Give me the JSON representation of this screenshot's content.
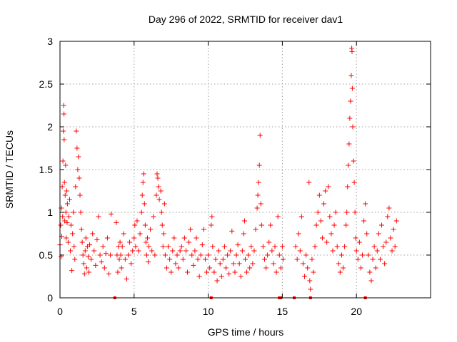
{
  "chart_data": {
    "type": "scatter",
    "title": "Day 296 of 2022, SRMTID for receiver dav1",
    "xlabel": "GPS time / hours",
    "ylabel": "SRMTID / TECUs",
    "xlim": [
      0,
      25
    ],
    "ylim": [
      0,
      3
    ],
    "xticks": [
      0,
      5,
      10,
      15,
      20
    ],
    "xtick_labels": [
      "0",
      "5",
      "10",
      "15",
      "20"
    ],
    "yticks": [
      0,
      0.5,
      1,
      1.5,
      2,
      2.5,
      3
    ],
    "ytick_labels": [
      "0",
      "0.5",
      "1",
      "1.5",
      "2",
      "2.5",
      "3"
    ],
    "grid": true,
    "marker": "+",
    "color": "#ff0000",
    "series": [
      {
        "name": "SRMTID",
        "points": [
          [
            0.0,
            0.62
          ],
          [
            0.05,
            0.85
          ],
          [
            0.08,
            0.48
          ],
          [
            0.1,
            1.05
          ],
          [
            0.12,
            0.72
          ],
          [
            0.15,
            1.3
          ],
          [
            0.18,
            0.95
          ],
          [
            0.2,
            1.6
          ],
          [
            0.22,
            1.95
          ],
          [
            0.25,
            2.25
          ],
          [
            0.27,
            2.15
          ],
          [
            0.28,
            1.85
          ],
          [
            0.3,
            1.35
          ],
          [
            0.32,
            0.9
          ],
          [
            0.35,
            1.2
          ],
          [
            0.38,
            1.55
          ],
          [
            0.4,
            1.0
          ],
          [
            0.42,
            0.7
          ],
          [
            0.45,
            1.25
          ],
          [
            0.48,
            0.88
          ],
          [
            0.5,
            1.1
          ],
          [
            0.55,
            0.65
          ],
          [
            0.6,
            0.95
          ],
          [
            0.65,
            1.15
          ],
          [
            0.7,
            0.55
          ],
          [
            0.75,
            0.85
          ],
          [
            0.8,
            0.32
          ],
          [
            0.85,
            0.75
          ],
          [
            0.9,
            1.0
          ],
          [
            0.95,
            0.6
          ],
          [
            1.0,
            0.45
          ],
          [
            1.05,
            1.3
          ],
          [
            1.1,
            1.95
          ],
          [
            1.15,
            1.75
          ],
          [
            1.2,
            1.5
          ],
          [
            1.25,
            1.65
          ],
          [
            1.3,
            1.4
          ],
          [
            1.35,
            1.2
          ],
          [
            1.4,
            1.0
          ],
          [
            1.45,
            0.8
          ],
          [
            1.5,
            0.65
          ],
          [
            1.55,
            0.5
          ],
          [
            1.6,
            0.4
          ],
          [
            1.65,
            0.28
          ],
          [
            1.7,
            0.55
          ],
          [
            1.75,
            0.7
          ],
          [
            1.8,
            0.35
          ],
          [
            1.85,
            0.6
          ],
          [
            1.9,
            0.48
          ],
          [
            1.95,
            0.3
          ],
          [
            2.0,
            0.62
          ],
          [
            2.1,
            0.45
          ],
          [
            2.2,
            0.75
          ],
          [
            2.3,
            0.55
          ],
          [
            2.4,
            0.38
          ],
          [
            2.5,
            0.68
          ],
          [
            2.6,
            0.95
          ],
          [
            2.7,
            0.5
          ],
          [
            2.8,
            0.42
          ],
          [
            2.9,
            0.6
          ],
          [
            3.0,
            0.35
          ],
          [
            3.1,
            0.52
          ],
          [
            3.2,
            0.7
          ],
          [
            3.3,
            0.28
          ],
          [
            3.4,
            0.5
          ],
          [
            3.45,
            0.98
          ],
          [
            3.8,
            0.88
          ],
          [
            3.85,
            0.5
          ],
          [
            3.9,
            0.3
          ],
          [
            3.95,
            0.6
          ],
          [
            4.0,
            0.45
          ],
          [
            4.05,
            0.65
          ],
          [
            4.1,
            0.5
          ],
          [
            4.15,
            0.35
          ],
          [
            4.2,
            0.6
          ],
          [
            4.3,
            0.75
          ],
          [
            4.4,
            0.45
          ],
          [
            4.5,
            0.22
          ],
          [
            4.6,
            0.5
          ],
          [
            4.7,
            0.65
          ],
          [
            4.8,
            0.4
          ],
          [
            4.9,
            0.55
          ],
          [
            5.0,
            0.7
          ],
          [
            5.05,
            0.85
          ],
          [
            5.1,
            0.6
          ],
          [
            5.2,
            0.9
          ],
          [
            5.3,
            0.55
          ],
          [
            5.4,
            0.75
          ],
          [
            5.5,
            1.0
          ],
          [
            5.55,
            1.2
          ],
          [
            5.6,
            1.35
          ],
          [
            5.65,
            1.45
          ],
          [
            5.7,
            1.1
          ],
          [
            5.75,
            0.85
          ],
          [
            5.8,
            0.65
          ],
          [
            5.85,
            0.5
          ],
          [
            5.9,
            0.7
          ],
          [
            5.95,
            0.42
          ],
          [
            6.0,
            0.6
          ],
          [
            6.1,
            0.8
          ],
          [
            6.2,
            0.55
          ],
          [
            6.3,
            0.95
          ],
          [
            6.4,
            0.5
          ],
          [
            6.5,
            1.2
          ],
          [
            6.55,
            1.45
          ],
          [
            6.6,
            1.4
          ],
          [
            6.65,
            1.3
          ],
          [
            6.7,
            1.15
          ],
          [
            6.8,
            1.25
          ],
          [
            6.85,
            1.0
          ],
          [
            6.9,
            0.85
          ],
          [
            6.95,
            0.6
          ],
          [
            7.0,
            0.75
          ],
          [
            7.05,
            1.1
          ],
          [
            7.1,
            0.5
          ],
          [
            7.2,
            0.35
          ],
          [
            7.3,
            0.6
          ],
          [
            7.4,
            0.45
          ],
          [
            7.5,
            0.3
          ],
          [
            7.6,
            0.55
          ],
          [
            7.7,
            0.7
          ],
          [
            7.8,
            0.4
          ],
          [
            7.9,
            0.5
          ],
          [
            8.0,
            0.35
          ],
          [
            8.1,
            0.55
          ],
          [
            8.2,
            0.6
          ],
          [
            8.3,
            0.45
          ],
          [
            8.4,
            0.7
          ],
          [
            8.5,
            0.55
          ],
          [
            8.6,
            0.3
          ],
          [
            8.7,
            0.65
          ],
          [
            8.8,
            0.8
          ],
          [
            8.9,
            0.5
          ],
          [
            9.0,
            0.38
          ],
          [
            9.1,
            0.55
          ],
          [
            9.2,
            0.7
          ],
          [
            9.3,
            0.45
          ],
          [
            9.4,
            0.25
          ],
          [
            9.5,
            0.5
          ],
          [
            9.6,
            0.62
          ],
          [
            9.7,
            0.8
          ],
          [
            9.8,
            0.45
          ],
          [
            9.9,
            0.3
          ],
          [
            10.0,
            0.5
          ],
          [
            10.1,
            0.35
          ],
          [
            10.2,
            0.85
          ],
          [
            10.25,
            0.95
          ],
          [
            10.3,
            0.6
          ],
          [
            10.4,
            0.3
          ],
          [
            10.5,
            0.45
          ],
          [
            10.6,
            0.2
          ],
          [
            10.7,
            0.55
          ],
          [
            10.8,
            0.4
          ],
          [
            10.9,
            0.25
          ],
          [
            11.0,
            0.45
          ],
          [
            11.1,
            0.6
          ],
          [
            11.2,
            0.35
          ],
          [
            11.3,
            0.5
          ],
          [
            11.4,
            0.28
          ],
          [
            11.5,
            0.55
          ],
          [
            11.6,
            0.78
          ],
          [
            11.7,
            0.4
          ],
          [
            11.8,
            0.3
          ],
          [
            11.9,
            0.5
          ],
          [
            12.0,
            0.62
          ],
          [
            12.1,
            0.4
          ],
          [
            12.2,
            0.25
          ],
          [
            12.3,
            0.55
          ],
          [
            12.4,
            0.75
          ],
          [
            12.45,
            0.9
          ],
          [
            12.5,
            0.45
          ],
          [
            12.6,
            0.3
          ],
          [
            12.7,
            0.5
          ],
          [
            12.8,
            0.35
          ],
          [
            12.9,
            0.6
          ],
          [
            13.0,
            0.4
          ],
          [
            13.1,
            0.55
          ],
          [
            13.2,
            0.8
          ],
          [
            13.3,
            1.05
          ],
          [
            13.35,
            1.2
          ],
          [
            13.4,
            1.35
          ],
          [
            13.45,
            1.55
          ],
          [
            13.5,
            1.9
          ],
          [
            13.55,
            1.1
          ],
          [
            13.6,
            0.85
          ],
          [
            13.7,
            0.6
          ],
          [
            13.8,
            0.45
          ],
          [
            13.9,
            0.35
          ],
          [
            14.0,
            0.5
          ],
          [
            14.1,
            0.65
          ],
          [
            14.2,
            0.85
          ],
          [
            14.3,
            0.55
          ],
          [
            14.4,
            0.4
          ],
          [
            14.5,
            0.6
          ],
          [
            14.6,
            0.3
          ],
          [
            14.7,
            0.95
          ],
          [
            14.8,
            0.5
          ],
          [
            14.9,
            0.35
          ],
          [
            15.0,
            0.6
          ],
          [
            15.05,
            0.45
          ],
          [
            15.9,
            0.6
          ],
          [
            16.0,
            0.45
          ],
          [
            16.1,
            0.75
          ],
          [
            16.2,
            0.55
          ],
          [
            16.3,
            0.95
          ],
          [
            16.4,
            0.4
          ],
          [
            16.5,
            0.25
          ],
          [
            16.6,
            0.5
          ],
          [
            16.7,
            0.35
          ],
          [
            16.8,
            1.35
          ],
          [
            16.85,
            0.2
          ],
          [
            16.9,
            0.1
          ],
          [
            17.0,
            0.45
          ],
          [
            17.1,
            0.3
          ],
          [
            17.2,
            0.6
          ],
          [
            17.3,
            0.85
          ],
          [
            17.4,
            1.0
          ],
          [
            17.5,
            1.2
          ],
          [
            17.6,
            0.9
          ],
          [
            17.7,
            0.7
          ],
          [
            17.8,
            1.1
          ],
          [
            17.9,
            1.25
          ],
          [
            18.0,
            0.65
          ],
          [
            18.1,
            1.3
          ],
          [
            18.2,
            0.95
          ],
          [
            18.3,
            0.75
          ],
          [
            18.4,
            0.55
          ],
          [
            18.5,
            0.85
          ],
          [
            18.6,
            1.0
          ],
          [
            18.7,
            0.6
          ],
          [
            18.8,
            0.4
          ],
          [
            18.9,
            0.3
          ],
          [
            19.0,
            0.5
          ],
          [
            19.1,
            0.35
          ],
          [
            19.2,
            0.6
          ],
          [
            19.3,
            0.85
          ],
          [
            19.35,
            1.0
          ],
          [
            19.4,
            1.3
          ],
          [
            19.45,
            1.55
          ],
          [
            19.5,
            1.8
          ],
          [
            19.55,
            2.1
          ],
          [
            19.6,
            2.3
          ],
          [
            19.65,
            2.6
          ],
          [
            19.68,
            2.92
          ],
          [
            19.7,
            2.88
          ],
          [
            19.72,
            2.45
          ],
          [
            19.75,
            2.0
          ],
          [
            19.8,
            1.6
          ],
          [
            19.85,
            1.35
          ],
          [
            19.9,
            1.0
          ],
          [
            19.95,
            0.7
          ],
          [
            20.0,
            0.55
          ],
          [
            20.1,
            0.45
          ],
          [
            20.2,
            0.65
          ],
          [
            20.3,
            0.35
          ],
          [
            20.4,
            0.5
          ],
          [
            20.5,
            0.9
          ],
          [
            20.6,
            1.1
          ],
          [
            20.7,
            0.75
          ],
          [
            20.8,
            0.5
          ],
          [
            20.9,
            0.3
          ],
          [
            21.0,
            0.2
          ],
          [
            21.1,
            0.45
          ],
          [
            21.2,
            0.6
          ],
          [
            21.3,
            0.35
          ],
          [
            21.4,
            0.55
          ],
          [
            21.5,
            0.75
          ],
          [
            21.6,
            0.45
          ],
          [
            21.7,
            0.85
          ],
          [
            21.8,
            0.6
          ],
          [
            21.9,
            0.4
          ],
          [
            22.0,
            0.65
          ],
          [
            22.1,
            0.95
          ],
          [
            22.2,
            1.05
          ],
          [
            22.3,
            0.7
          ],
          [
            22.4,
            0.55
          ],
          [
            22.5,
            0.8
          ],
          [
            22.6,
            0.6
          ],
          [
            22.7,
            0.9
          ]
        ]
      }
    ],
    "markers_on_axis_x": [
      3.7,
      10.2,
      14.8,
      14.9,
      15.8,
      16.9,
      20.6
    ]
  }
}
